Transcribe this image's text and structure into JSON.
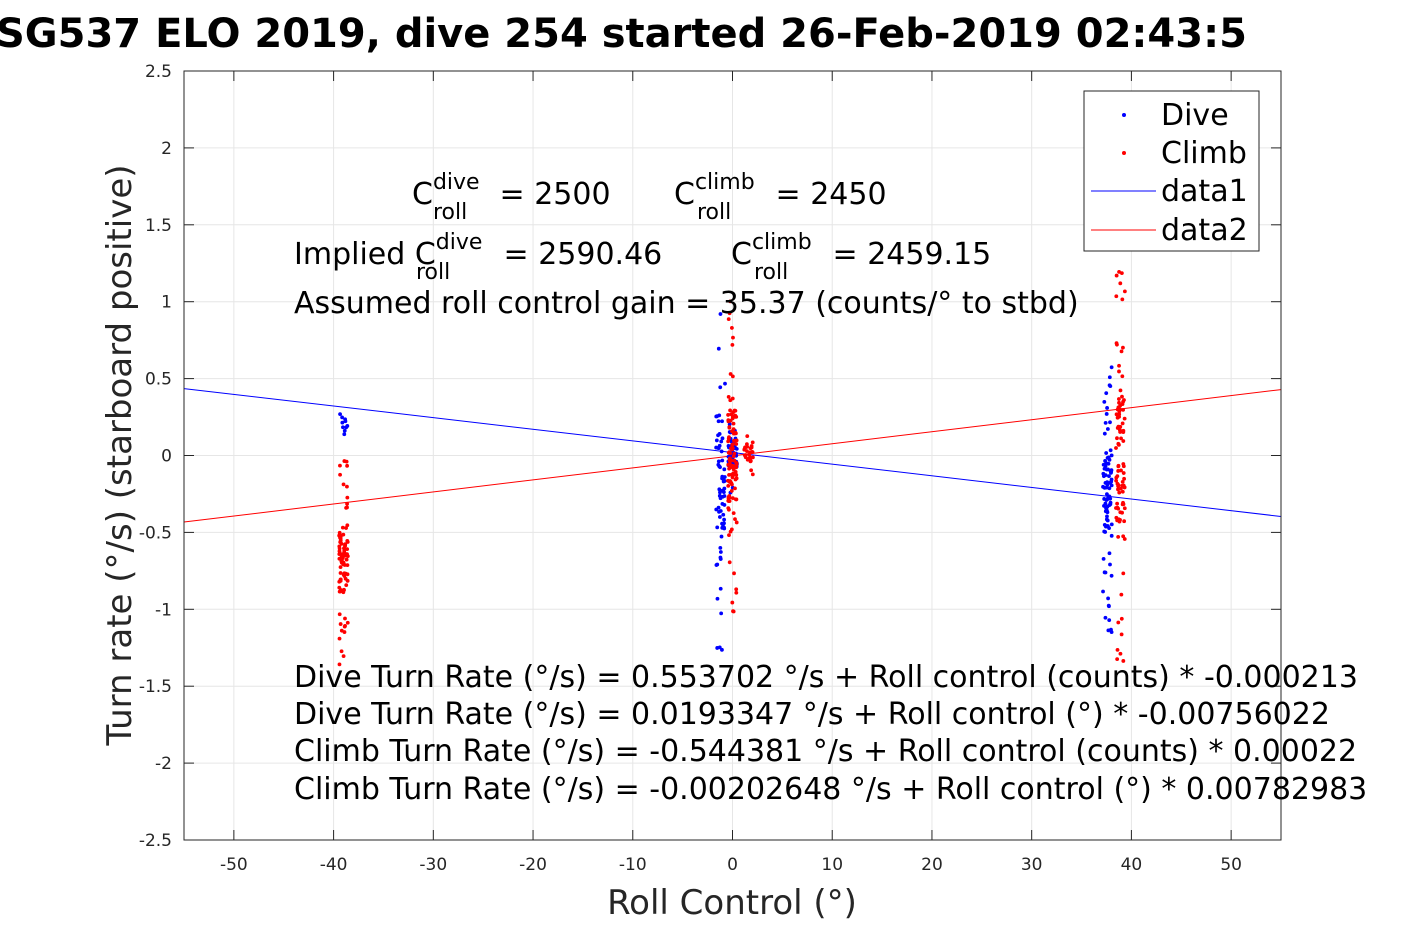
{
  "chart_data": {
    "type": "scatter",
    "title": "SG537 ELO 2019, dive 254 started 26-Feb-2019 02:43:5",
    "xlabel": "Roll Control (°)",
    "ylabel": "Turn rate (°/s) (starboard positive)",
    "xlim": [
      -55,
      55
    ],
    "ylim": [
      -2.5,
      2.5
    ],
    "grid": true,
    "legend_position": "top-right",
    "x_ticks": [
      -50,
      -40,
      -30,
      -20,
      -10,
      0,
      10,
      20,
      30,
      40,
      50
    ],
    "y_ticks": [
      -2.5,
      -2,
      -1.5,
      -1,
      -0.5,
      0,
      0.5,
      1,
      1.5,
      2,
      2.5
    ],
    "colors": {
      "dive": "#0000ff",
      "climb": "#ff0000"
    },
    "series": [
      {
        "name": "Dive",
        "kind": "points",
        "clusters": [
          {
            "x": -39.0,
            "ymin": 0.1,
            "ymax": 0.3,
            "count": 10
          },
          {
            "x": -1.2,
            "ymin": -1.32,
            "ymax": 0.93,
            "count": 70
          },
          {
            "x": 0.0,
            "ymin": -0.25,
            "ymax": 0.25,
            "count": 60
          },
          {
            "x": 37.6,
            "ymin": -1.17,
            "ymax": 0.64,
            "count": 90
          }
        ]
      },
      {
        "name": "Climb",
        "kind": "points",
        "clusters": [
          {
            "x": -39.0,
            "ymin": -1.38,
            "ymax": 0.02,
            "count": 90
          },
          {
            "x": 0.0,
            "ymin": -1.03,
            "ymax": 1.04,
            "count": 110
          },
          {
            "x": 1.6,
            "ymin": -0.15,
            "ymax": 0.17,
            "count": 30
          },
          {
            "x": 38.9,
            "ymin": -1.37,
            "ymax": 1.32,
            "count": 100
          }
        ]
      },
      {
        "name": "data1",
        "kind": "line",
        "intercept": 0.0193347,
        "slope": -0.00756022
      },
      {
        "name": "data2",
        "kind": "line",
        "intercept": -0.00202648,
        "slope": 0.00782983
      }
    ],
    "annotations": {
      "line1_a": "C",
      "line1_a_sup": "dive",
      "line1_a_sub": "roll",
      "line1_a_val": " = 2500",
      "line1_b": "C",
      "line1_b_sup": "climb",
      "line1_b_sub": "roll",
      "line1_b_val": " = 2450",
      "line2_prefix": "Implied C",
      "line2_a_sup": "dive",
      "line2_a_sub": "roll",
      "line2_a_val": " = 2590.46",
      "line2_b": "C",
      "line2_b_sup": "climb",
      "line2_b_sub": "roll",
      "line2_b_val": " = 2459.15",
      "gain": "Assumed roll control gain = 35.37 (counts/° to stbd)",
      "eq1": "Dive Turn Rate (°/s) = 0.553702 °/s + Roll control (counts) * -0.000213",
      "eq2": "Dive Turn Rate (°/s) = 0.0193347 °/s + Roll control (°) * -0.00756022",
      "eq3": "Climb Turn Rate (°/s) = -0.544381 °/s + Roll control (counts) * 0.00022",
      "eq4": "Climb Turn Rate (°/s) = -0.00202648 °/s + Roll control (°) * 0.00782983"
    }
  }
}
